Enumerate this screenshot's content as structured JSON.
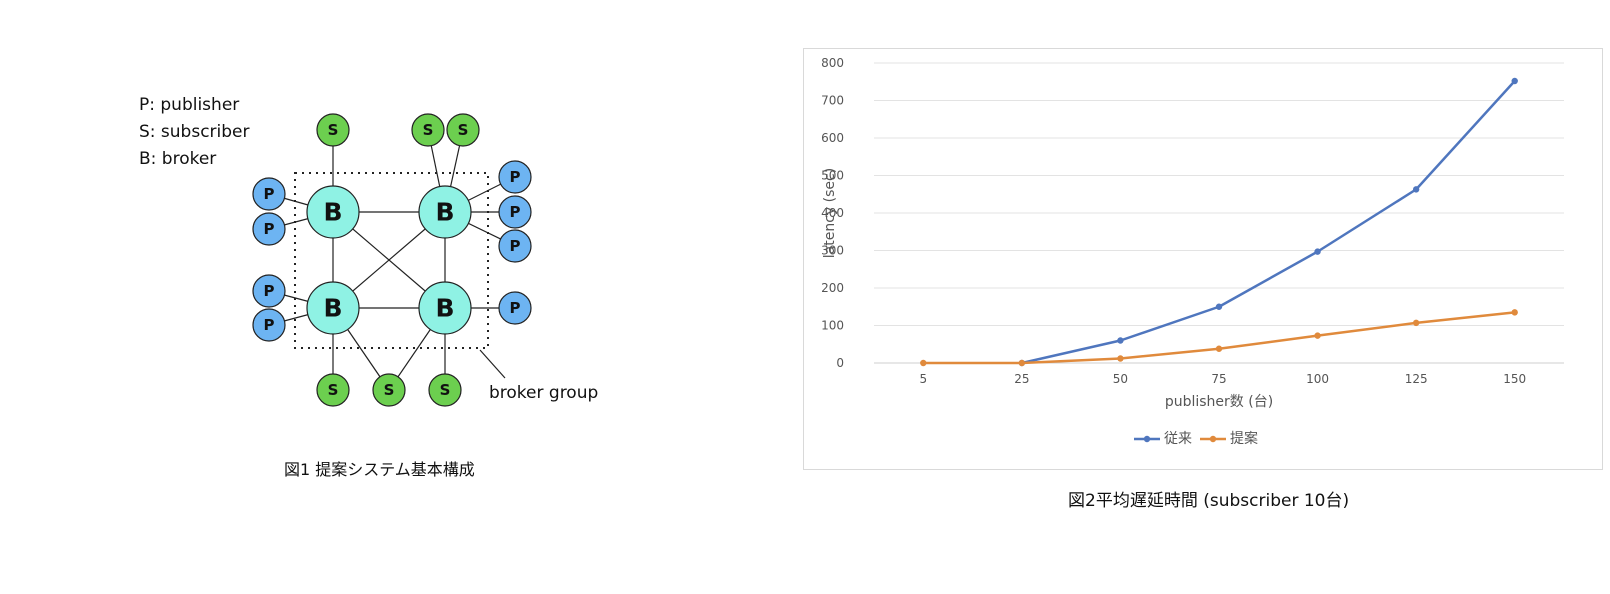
{
  "figure1": {
    "caption": "図1 提案システム基本構成",
    "legend": [
      "P: publisher",
      "S: subscriber",
      "B: broker"
    ],
    "node_labels": {
      "publisher": "P",
      "subscriber": "S",
      "broker": "B"
    },
    "group_label": "broker group",
    "colors": {
      "publisher": "#6db4f2",
      "subscriber": "#6ccf4f",
      "broker": "#8ff2e4",
      "stroke": "#222222"
    }
  },
  "figure2": {
    "caption": "図2平均遅延時間 (subscriber 10台)",
    "chart_data": {
      "type": "line",
      "categories": [
        "5",
        "25",
        "50",
        "75",
        "100",
        "125",
        "150"
      ],
      "series": [
        {
          "name": "従来",
          "color": "#4f76be",
          "values": [
            null,
            0,
            60,
            150,
            297,
            463,
            752
          ]
        },
        {
          "name": "提案",
          "color": "#e08a3c",
          "values": [
            0,
            0,
            12,
            38,
            73,
            107,
            135
          ]
        }
      ],
      "xlabel": "publisher数 (台)",
      "ylabel": "latency (sec)",
      "ylim": [
        0,
        800
      ],
      "yticks": [
        0,
        100,
        200,
        300,
        400,
        500,
        600,
        700,
        800
      ],
      "grid": true,
      "legend_position": "bottom"
    }
  }
}
